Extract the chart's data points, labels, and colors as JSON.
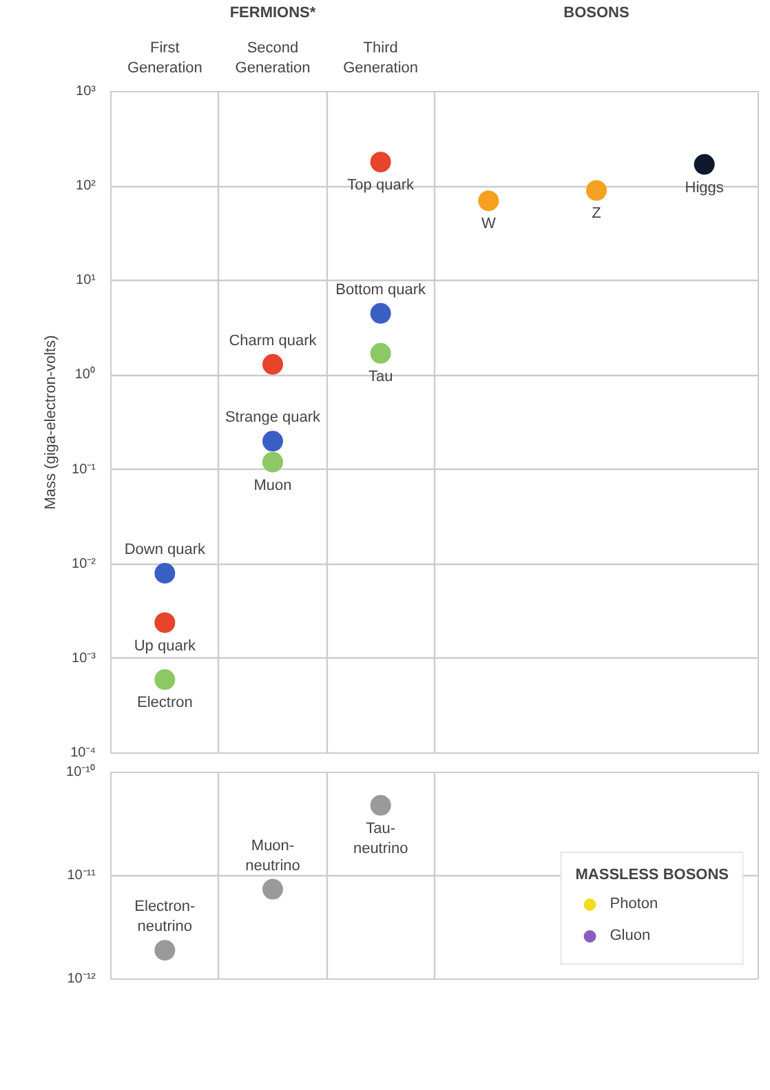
{
  "chart_data": [
    {
      "type": "scatter",
      "categories": [
        "First Generation",
        "Second Generation",
        "Third Generation",
        null,
        null,
        null
      ],
      "ylabel": "Mass (giga-electron-volts)",
      "log": "y",
      "grid": true,
      "marker": "circle",
      "ylim": [
        0.0001,
        1000
      ],
      "yticks": [
        {
          "value": 0.0001,
          "label": "10⁻⁴"
        },
        {
          "value": 0.001,
          "label": "10⁻³"
        },
        {
          "value": 0.01,
          "label": "10⁻²"
        },
        {
          "value": 0.1,
          "label": "10⁻¹"
        },
        {
          "value": 1,
          "label": "10⁰"
        },
        {
          "value": 10,
          "label": "10¹"
        },
        {
          "value": 100,
          "label": "10²"
        },
        {
          "value": 1000,
          "label": "10³"
        }
      ],
      "series": [
        {
          "color": "#e8432b",
          "values": [
            0.0024,
            1.3,
            180,
            null,
            null,
            null
          ]
        },
        {
          "color": "#3a5fc4",
          "values": [
            0.008,
            0.2,
            4.5,
            null,
            null,
            null
          ]
        },
        {
          "color": "#8cc864",
          "values": [
            0.0006,
            0.12,
            1.7,
            null,
            null,
            null
          ]
        },
        {
          "color": "#f5a020",
          "values": [
            null,
            null,
            null,
            70,
            90,
            null
          ]
        },
        {
          "color": "#101830",
          "values": [
            null,
            null,
            null,
            null,
            null,
            170
          ]
        }
      ],
      "annotations": [
        "FERMIONS*",
        "BOSONS",
        {
          "text": "Up quark",
          "x": "First Generation",
          "y": 0.0024
        },
        {
          "text": "Down quark",
          "x": "First Generation",
          "y": 0.008
        },
        {
          "text": "Electron",
          "x": "First Generation",
          "y": 0.0006
        },
        {
          "text": "Charm quark",
          "x": "Second Generation",
          "y": 1.3
        },
        {
          "text": "Strange quark",
          "x": "Second Generation",
          "y": 0.2
        },
        {
          "text": "Muon",
          "x": "Second Generation",
          "y": 0.12
        },
        {
          "text": "Top quark",
          "x": "Third Generation",
          "y": 180
        },
        {
          "text": "Bottom quark",
          "x": "Third Generation",
          "y": 4.5
        },
        {
          "text": "Tau",
          "x": "Third Generation",
          "y": 1.7
        },
        {
          "text": "W",
          "y": 70
        },
        {
          "text": "Z",
          "y": 90
        },
        {
          "text": "Higgs",
          "y": 170
        }
      ]
    },
    {
      "type": "scatter",
      "categories": [
        "First Generation",
        "Second Generation",
        "Third Generation",
        null,
        null,
        null
      ],
      "log": "y",
      "grid": true,
      "marker": "circle",
      "tick_labels": "y",
      "legend": "bottom right",
      "legend_title": "MASSLESS BOSONS",
      "ylim": [
        1e-12,
        1e-10
      ],
      "yticks": [
        {
          "value": 1e-12,
          "label": "10⁻¹²"
        },
        {
          "value": 1e-11,
          "label": "10⁻¹¹"
        },
        {
          "value": 1e-10,
          "label": "10⁻¹⁰"
        }
      ],
      "series": [
        {
          "color": "#9a9a9a",
          "values": [
            1.9e-12,
            7.4e-12,
            4.8e-11,
            null,
            null,
            null
          ]
        },
        {
          "name": "Photon",
          "color": "#f2dc20",
          "values": [
            null,
            null,
            null,
            null,
            null,
            null
          ]
        },
        {
          "name": "Gluon",
          "color": "#8a5cc0",
          "values": [
            null,
            null,
            null,
            null,
            null,
            null
          ]
        }
      ],
      "annotations": [
        {
          "text": "Electron-neutrino",
          "x": "First Generation",
          "y": 1.9e-12
        },
        {
          "text": "Muon-neutrino",
          "x": "Second Generation",
          "y": 7.4e-12
        },
        {
          "text": "Tau-neutrino",
          "x": "Third Generation",
          "y": 4.8e-11
        }
      ]
    }
  ]
}
